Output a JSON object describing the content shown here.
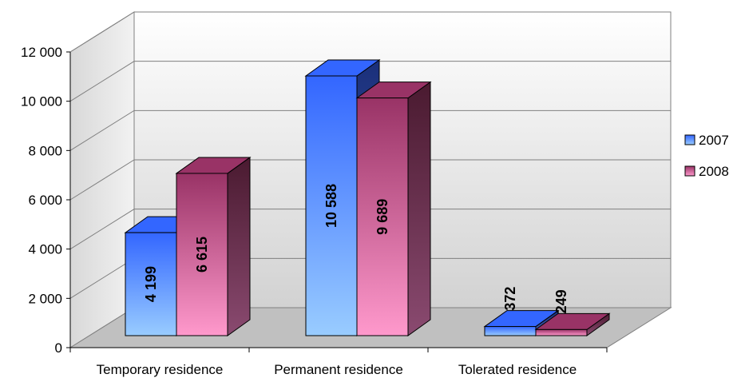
{
  "chart_data": {
    "type": "bar",
    "title": "",
    "xlabel": "",
    "ylabel": "",
    "categories": [
      "Temporary residence",
      "Permanent residence",
      "Tolerated residence"
    ],
    "series": [
      {
        "name": "2007",
        "values": [
          4199,
          10588,
          372
        ],
        "labels": [
          "4 199",
          "10 588",
          "372"
        ]
      },
      {
        "name": "2008",
        "values": [
          6615,
          9689,
          249
        ],
        "labels": [
          "6 615",
          "9 689",
          "249"
        ]
      }
    ],
    "ylim": [
      0,
      12000
    ],
    "yticks": [
      0,
      2000,
      4000,
      6000,
      8000,
      10000,
      12000
    ],
    "ytick_labels": [
      "0",
      "2 000",
      "4 000",
      "6 000",
      "8 000",
      "10 000",
      "12 000"
    ],
    "grid": true,
    "style": "3d-clustered-column",
    "legend_position": "right",
    "colors": {
      "2007": "#3366ff",
      "2008": "#993366",
      "wall": "#dcdcdc",
      "floor": "#c0c0c0"
    }
  }
}
